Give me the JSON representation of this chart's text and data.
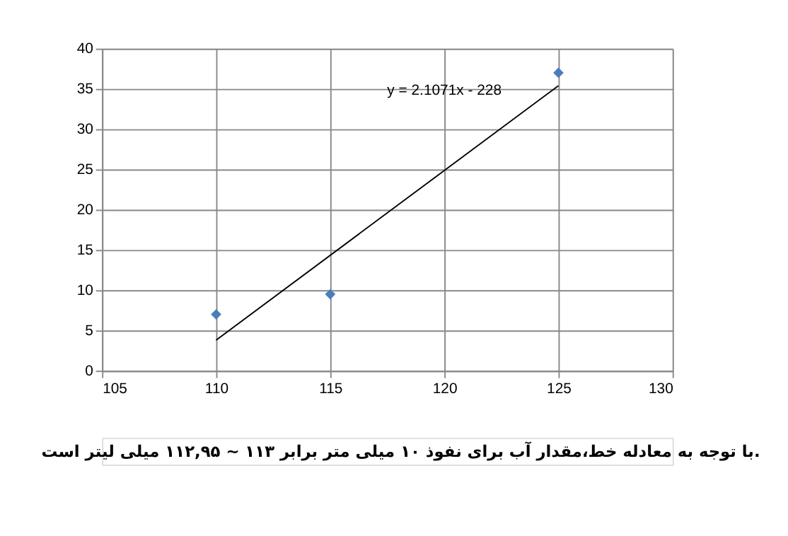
{
  "chart_data": {
    "type": "scatter",
    "series": [
      {
        "color": "#4a7ebb",
        "marker": "diamond",
        "x": [
          110,
          115,
          125
        ],
        "values": [
          7,
          9.5,
          37
        ]
      },
      {
        "type": "line",
        "color": "#000000",
        "marker": "none",
        "x": [
          110,
          125
        ],
        "values": [
          3.8,
          35.4
        ]
      }
    ],
    "xlim": [
      105,
      130
    ],
    "xticks": [
      105,
      110,
      115,
      120,
      125,
      130
    ],
    "ylim": [
      0,
      40
    ],
    "yticks": [
      0,
      5,
      10,
      15,
      20,
      25,
      30,
      35,
      40
    ],
    "grid": true,
    "annotations": [
      "y = 2.1071x - 228",
      "با توجه به معادله خط،مقدار آب برای نفوذ ۱۰ میلی متر برابر ۱۱۳ ~ ۱۱۲,۹۵ میلی لیتر است."
    ]
  }
}
